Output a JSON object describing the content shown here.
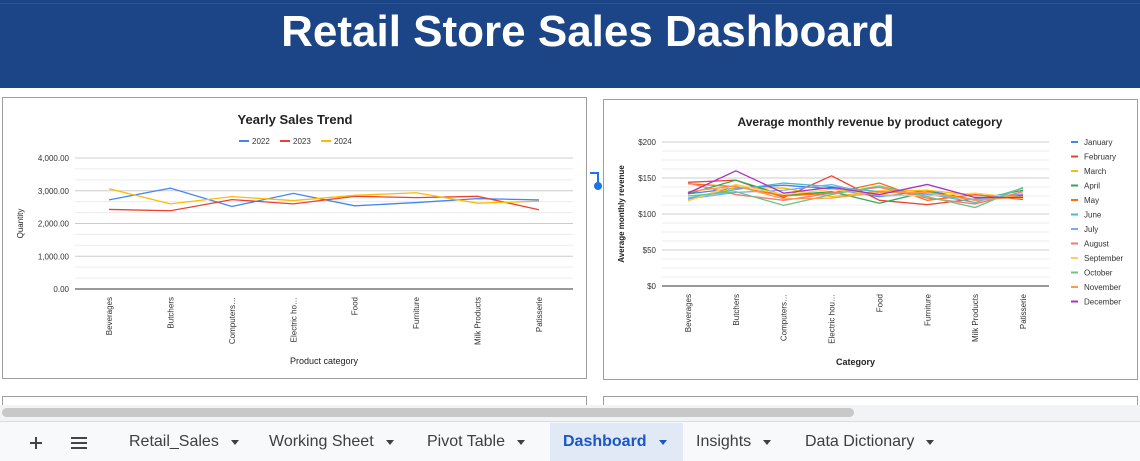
{
  "header": {
    "title": "Retail Store Sales Dashboard",
    "colors": {
      "banner": "#1c4587",
      "text": "#ffffff"
    }
  },
  "tabs": [
    {
      "label": "Retail_Sales",
      "active": false
    },
    {
      "label": "Working Sheet",
      "active": false
    },
    {
      "label": "Pivot Table",
      "active": false
    },
    {
      "label": "Dashboard",
      "active": true
    },
    {
      "label": "Insights",
      "active": false
    },
    {
      "label": "Data Dictionary",
      "active": false
    }
  ],
  "toolbar": {
    "add_icon": "plus-icon",
    "list_icon": "menu-list-icon"
  },
  "chart_data": [
    {
      "type": "line",
      "title": "Yearly Sales Trend",
      "xlabel": "Product category",
      "ylabel": "Quantity",
      "ylim": [
        0,
        4000
      ],
      "yticks": [
        "0.00",
        "1,000.00",
        "2,000.00",
        "3,000.00",
        "4,000.00"
      ],
      "categories": [
        "Beverages",
        "Butchers",
        "Computers…",
        "Electric ho…",
        "Food",
        "Furniture",
        "Milk Products",
        "Patisserie"
      ],
      "legend_position": "top",
      "grid": true,
      "series": [
        {
          "name": "2022",
          "color": "#4285f4",
          "values": [
            2720,
            3080,
            2520,
            2920,
            2540,
            2640,
            2760,
            2720
          ]
        },
        {
          "name": "2023",
          "color": "#ea4335",
          "values": [
            2430,
            2390,
            2730,
            2600,
            2830,
            2790,
            2830,
            2420
          ]
        },
        {
          "name": "2024",
          "color": "#fbbc04",
          "values": [
            3060,
            2600,
            2820,
            2700,
            2860,
            2940,
            2620,
            2680
          ]
        }
      ]
    },
    {
      "type": "line",
      "title": "Average monthly revenue by product category",
      "xlabel": "Category",
      "ylabel": "Average monthly revenue",
      "ylim": [
        0,
        200
      ],
      "yticks": [
        "$0",
        "$50",
        "$100",
        "$150",
        "$200"
      ],
      "categories": [
        "Beverages",
        "Butchers",
        "Computers…",
        "Electric hou…",
        "Food",
        "Furniture",
        "Milk Products",
        "Patisserie"
      ],
      "legend_position": "right",
      "grid": true,
      "series": [
        {
          "name": "January",
          "color": "#4285f4",
          "values": [
            128,
            136,
            140,
            135,
            124,
            133,
            119,
            126
          ]
        },
        {
          "name": "February",
          "color": "#ea4335",
          "values": [
            144,
            147,
            123,
            153,
            119,
            113,
            121,
            126
          ]
        },
        {
          "name": "March",
          "color": "#fbbc04",
          "values": [
            119,
            137,
            136,
            124,
            132,
            133,
            126,
            124
          ]
        },
        {
          "name": "April",
          "color": "#34a853",
          "values": [
            128,
            147,
            126,
            131,
            115,
            131,
            120,
            133
          ]
        },
        {
          "name": "May",
          "color": "#ff6d01",
          "values": [
            142,
            138,
            125,
            129,
            143,
            119,
            127,
            120
          ]
        },
        {
          "name": "June",
          "color": "#46bdc6",
          "values": [
            122,
            134,
            143,
            138,
            131,
            128,
            116,
            136
          ]
        },
        {
          "name": "July",
          "color": "#7baaf7",
          "values": [
            121,
            130,
            133,
            141,
            125,
            127,
            120,
            128
          ]
        },
        {
          "name": "August",
          "color": "#f07b72",
          "values": [
            143,
            127,
            119,
            129,
            137,
            122,
            114,
            131
          ]
        },
        {
          "name": "September",
          "color": "#fcd04f",
          "values": [
            118,
            141,
            127,
            134,
            127,
            125,
            129,
            122
          ]
        },
        {
          "name": "October",
          "color": "#71c287",
          "values": [
            125,
            131,
            112,
            127,
            139,
            124,
            109,
            137
          ]
        },
        {
          "name": "November",
          "color": "#ff994d",
          "values": [
            131,
            139,
            121,
            122,
            130,
            130,
            119,
            124
          ]
        },
        {
          "name": "December",
          "color": "#ab30c4",
          "values": [
            129,
            160,
            129,
            137,
            127,
            141,
            123,
            123
          ]
        }
      ]
    }
  ]
}
